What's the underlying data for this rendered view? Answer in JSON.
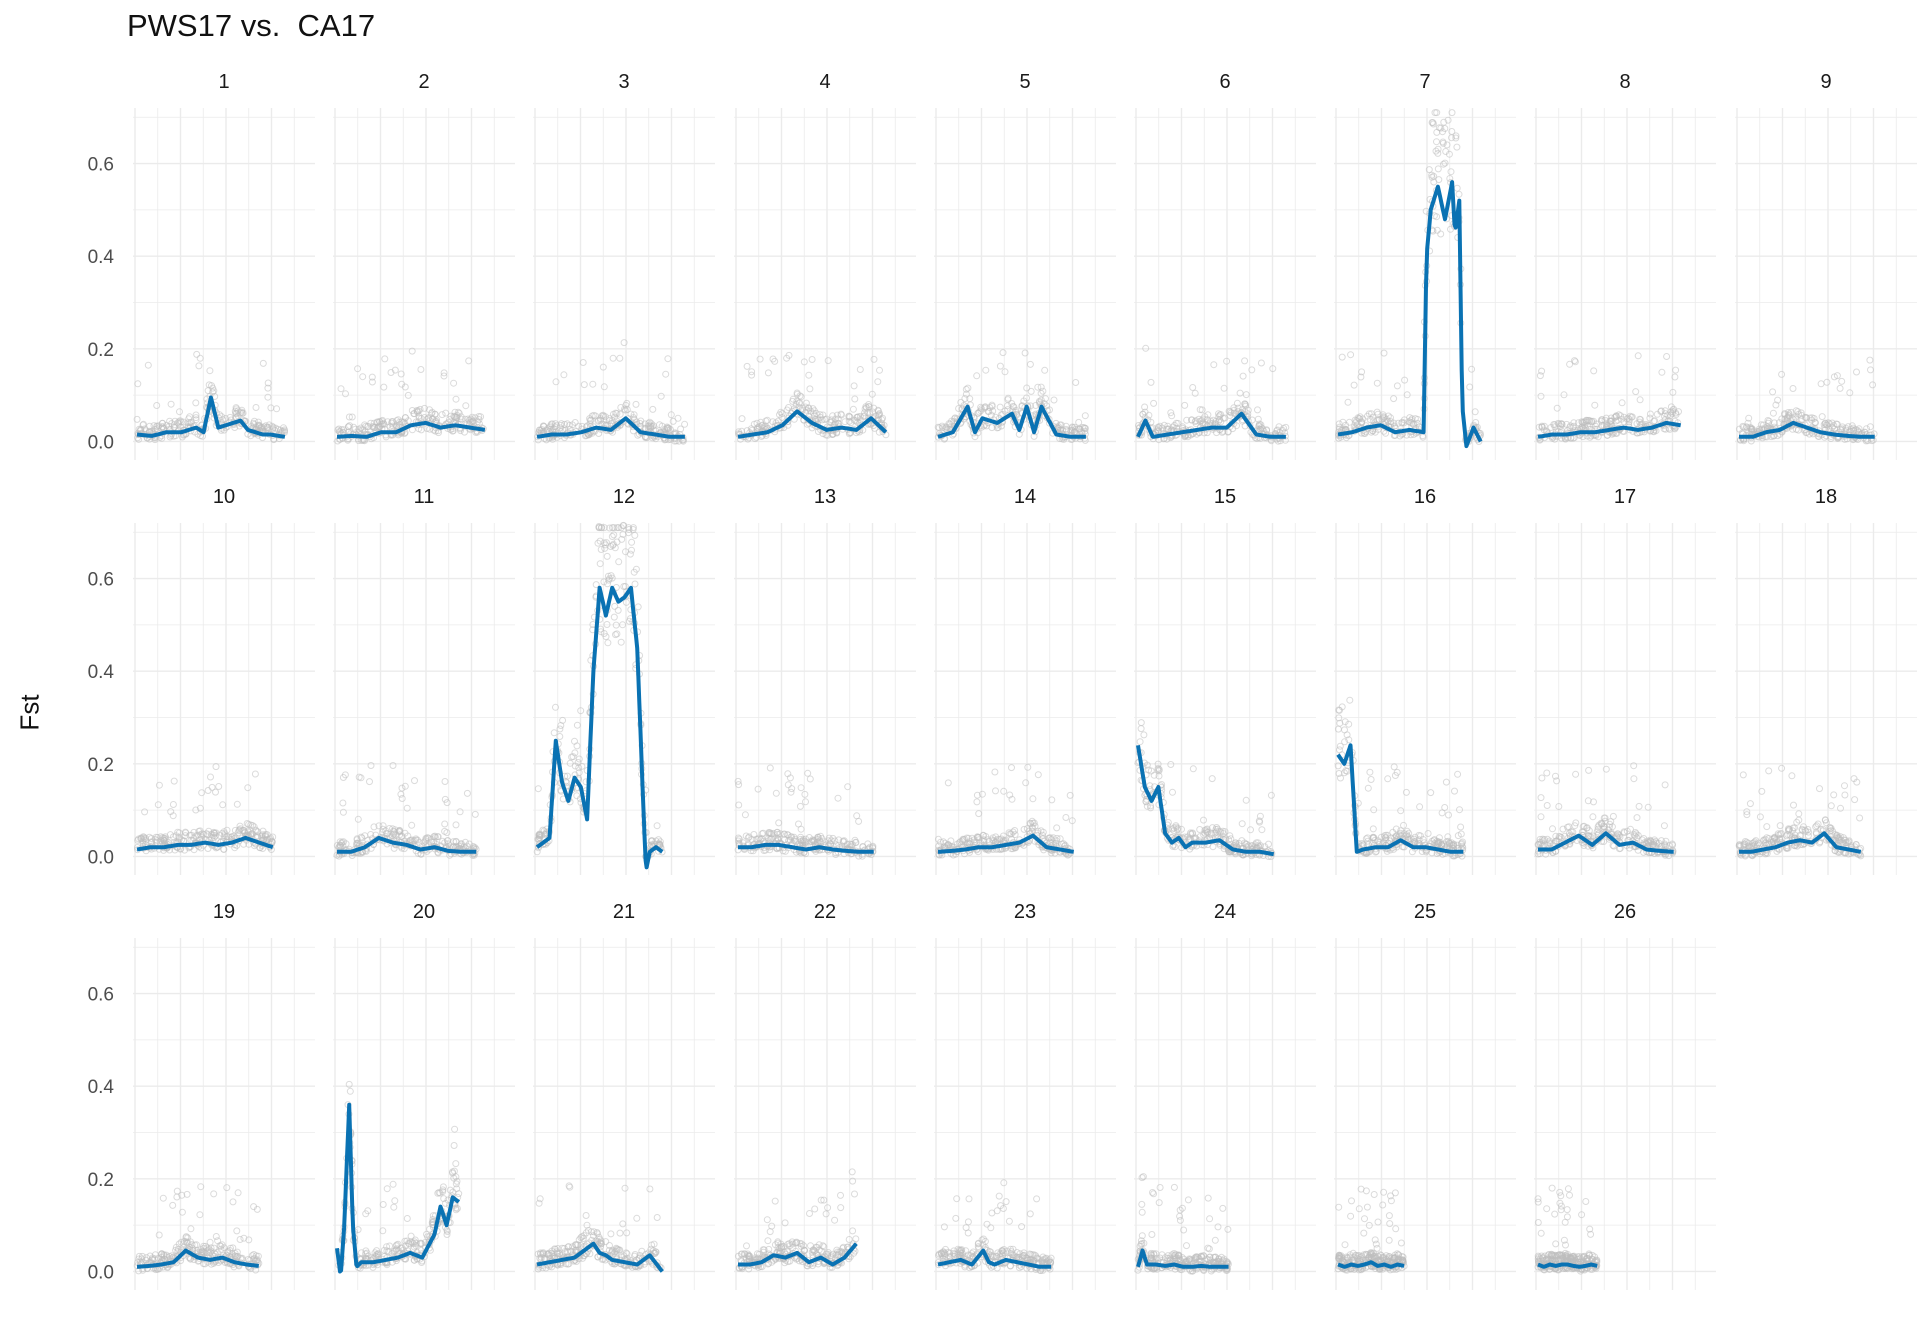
{
  "chart_data": {
    "type": "scatter",
    "title": "PWS17 vs.  CA17",
    "subtitle": "",
    "xlabel": "",
    "ylabel": "Fst",
    "ylim": [
      -0.04,
      0.72
    ],
    "y_ticks": [
      "0.0",
      "0.2",
      "0.4",
      "0.6"
    ],
    "y_tick_values": [
      0,
      0.2,
      0.4,
      0.6
    ],
    "x_tick_labels_shown": false,
    "grid": true,
    "legend": "none",
    "colors": {
      "points": "#bdbdbd",
      "smooth_line": "#0a72b3",
      "grid": "#ebebeb"
    },
    "facets": [
      {
        "label": "1",
        "x": [
          0,
          0.1,
          0.2,
          0.3,
          0.4,
          0.45,
          0.5,
          0.55,
          0.6,
          0.65,
          0.7,
          0.75,
          0.8,
          0.85,
          0.9,
          1
        ],
        "y": [
          0.015,
          0.012,
          0.02,
          0.02,
          0.03,
          0.02,
          0.095,
          0.03,
          0.035,
          0.04,
          0.045,
          0.025,
          0.02,
          0.015,
          0.015,
          0.01
        ]
      },
      {
        "label": "2",
        "x": [
          0,
          0.1,
          0.2,
          0.3,
          0.4,
          0.5,
          0.6,
          0.7,
          0.8,
          0.9,
          1
        ],
        "y": [
          0.01,
          0.012,
          0.01,
          0.02,
          0.02,
          0.035,
          0.04,
          0.03,
          0.035,
          0.03,
          0.025
        ]
      },
      {
        "label": "3",
        "x": [
          0,
          0.1,
          0.2,
          0.3,
          0.4,
          0.5,
          0.6,
          0.7,
          0.8,
          0.9,
          1
        ],
        "y": [
          0.01,
          0.015,
          0.015,
          0.02,
          0.03,
          0.025,
          0.05,
          0.02,
          0.015,
          0.01,
          0.01
        ]
      },
      {
        "label": "4",
        "x": [
          0,
          0.1,
          0.2,
          0.3,
          0.4,
          0.5,
          0.6,
          0.7,
          0.8,
          0.9,
          1
        ],
        "y": [
          0.01,
          0.015,
          0.02,
          0.035,
          0.065,
          0.04,
          0.025,
          0.03,
          0.025,
          0.05,
          0.02
        ]
      },
      {
        "label": "5",
        "x": [
          0,
          0.1,
          0.2,
          0.25,
          0.3,
          0.4,
          0.5,
          0.55,
          0.6,
          0.65,
          0.7,
          0.8,
          0.9,
          1
        ],
        "y": [
          0.01,
          0.02,
          0.075,
          0.02,
          0.05,
          0.04,
          0.06,
          0.025,
          0.075,
          0.02,
          0.075,
          0.015,
          0.01,
          0.01
        ]
      },
      {
        "label": "6",
        "x": [
          0,
          0.05,
          0.1,
          0.2,
          0.3,
          0.4,
          0.5,
          0.6,
          0.7,
          0.8,
          0.9,
          1
        ],
        "y": [
          0.01,
          0.045,
          0.01,
          0.015,
          0.02,
          0.025,
          0.03,
          0.03,
          0.06,
          0.015,
          0.01,
          0.01
        ]
      },
      {
        "label": "7",
        "x": [
          0,
          0.1,
          0.2,
          0.3,
          0.4,
          0.5,
          0.6,
          0.62,
          0.65,
          0.7,
          0.75,
          0.8,
          0.82,
          0.85,
          0.87,
          0.9,
          0.95,
          1
        ],
        "y": [
          0.015,
          0.02,
          0.03,
          0.035,
          0.02,
          0.025,
          0.02,
          0.4,
          0.5,
          0.55,
          0.48,
          0.56,
          0.45,
          0.52,
          0.08,
          -0.01,
          0.03,
          0.0
        ]
      },
      {
        "label": "8",
        "x": [
          0,
          0.1,
          0.2,
          0.3,
          0.4,
          0.5,
          0.6,
          0.7,
          0.8,
          0.9,
          1
        ],
        "y": [
          0.01,
          0.015,
          0.015,
          0.02,
          0.02,
          0.025,
          0.03,
          0.025,
          0.03,
          0.04,
          0.035
        ]
      },
      {
        "label": "9",
        "x": [
          0,
          0.1,
          0.2,
          0.3,
          0.4,
          0.5,
          0.6,
          0.7,
          0.8,
          0.9,
          1
        ],
        "y": [
          0.01,
          0.01,
          0.02,
          0.025,
          0.04,
          0.03,
          0.02,
          0.015,
          0.012,
          0.01,
          0.01
        ]
      },
      {
        "label": "10",
        "x": [
          0,
          0.1,
          0.2,
          0.3,
          0.4,
          0.5,
          0.6,
          0.7,
          0.8,
          0.9,
          1
        ],
        "y": [
          0.015,
          0.02,
          0.02,
          0.025,
          0.025,
          0.03,
          0.025,
          0.03,
          0.04,
          0.03,
          0.02
        ]
      },
      {
        "label": "11",
        "x": [
          0,
          0.1,
          0.2,
          0.3,
          0.4,
          0.5,
          0.6,
          0.7,
          0.8,
          0.9,
          1
        ],
        "y": [
          0.01,
          0.01,
          0.02,
          0.04,
          0.03,
          0.025,
          0.015,
          0.02,
          0.012,
          0.01,
          0.01
        ]
      },
      {
        "label": "12",
        "x": [
          0,
          0.1,
          0.15,
          0.2,
          0.25,
          0.3,
          0.35,
          0.4,
          0.45,
          0.5,
          0.55,
          0.6,
          0.65,
          0.7,
          0.75,
          0.8,
          0.85,
          0.87,
          0.9,
          0.95,
          1
        ],
        "y": [
          0.02,
          0.04,
          0.25,
          0.16,
          0.12,
          0.17,
          0.15,
          0.08,
          0.4,
          0.58,
          0.52,
          0.58,
          0.55,
          0.56,
          0.58,
          0.45,
          0.1,
          -0.03,
          0.01,
          0.02,
          0.01
        ]
      },
      {
        "label": "13",
        "x": [
          0,
          0.1,
          0.2,
          0.3,
          0.4,
          0.5,
          0.6,
          0.7,
          0.8,
          0.9,
          1
        ],
        "y": [
          0.02,
          0.02,
          0.025,
          0.025,
          0.02,
          0.015,
          0.02,
          0.015,
          0.012,
          0.01,
          0.01
        ]
      },
      {
        "label": "14",
        "x": [
          0,
          0.1,
          0.2,
          0.3,
          0.4,
          0.5,
          0.6,
          0.7,
          0.8,
          0.9,
          1
        ],
        "y": [
          0.01,
          0.012,
          0.015,
          0.02,
          0.02,
          0.025,
          0.03,
          0.045,
          0.02,
          0.015,
          0.01
        ]
      },
      {
        "label": "15",
        "x": [
          0,
          0.05,
          0.1,
          0.15,
          0.2,
          0.25,
          0.3,
          0.35,
          0.4,
          0.5,
          0.6,
          0.7,
          0.8,
          0.9,
          1
        ],
        "y": [
          0.24,
          0.15,
          0.12,
          0.15,
          0.05,
          0.03,
          0.04,
          0.02,
          0.03,
          0.03,
          0.035,
          0.015,
          0.01,
          0.01,
          0.005
        ]
      },
      {
        "label": "16",
        "x": [
          0,
          0.05,
          0.1,
          0.15,
          0.2,
          0.3,
          0.4,
          0.5,
          0.6,
          0.7,
          0.8,
          0.9,
          1
        ],
        "y": [
          0.22,
          0.2,
          0.24,
          0.01,
          0.015,
          0.02,
          0.02,
          0.035,
          0.02,
          0.02,
          0.015,
          0.01,
          0.01
        ]
      },
      {
        "label": "17",
        "x": [
          0,
          0.1,
          0.2,
          0.3,
          0.4,
          0.5,
          0.6,
          0.7,
          0.8,
          0.9,
          1
        ],
        "y": [
          0.015,
          0.015,
          0.03,
          0.045,
          0.025,
          0.05,
          0.025,
          0.03,
          0.015,
          0.012,
          0.01
        ]
      },
      {
        "label": "18",
        "x": [
          0,
          0.1,
          0.2,
          0.3,
          0.4,
          0.5,
          0.6,
          0.7,
          0.8,
          0.9,
          1
        ],
        "y": [
          0.01,
          0.01,
          0.015,
          0.02,
          0.03,
          0.035,
          0.03,
          0.05,
          0.02,
          0.015,
          0.01
        ]
      },
      {
        "label": "19",
        "x": [
          0,
          0.1,
          0.2,
          0.3,
          0.4,
          0.5,
          0.6,
          0.7,
          0.8,
          0.9,
          1
        ],
        "y": [
          0.01,
          0.012,
          0.015,
          0.02,
          0.045,
          0.03,
          0.025,
          0.03,
          0.02,
          0.015,
          0.012
        ]
      },
      {
        "label": "20",
        "x": [
          0,
          0.03,
          0.06,
          0.1,
          0.13,
          0.16,
          0.2,
          0.3,
          0.4,
          0.5,
          0.6,
          0.7,
          0.8,
          0.85,
          0.9,
          0.95,
          1
        ],
        "y": [
          0.05,
          -0.01,
          0.1,
          0.36,
          0.1,
          0.01,
          0.02,
          0.02,
          0.025,
          0.03,
          0.04,
          0.03,
          0.08,
          0.14,
          0.1,
          0.16,
          0.15
        ]
      },
      {
        "label": "21",
        "x": [
          0,
          0.1,
          0.2,
          0.3,
          0.4,
          0.45,
          0.5,
          0.55,
          0.6,
          0.7,
          0.8,
          0.9,
          1
        ],
        "y": [
          0.015,
          0.02,
          0.025,
          0.03,
          0.05,
          0.06,
          0.04,
          0.035,
          0.025,
          0.02,
          0.015,
          0.035,
          0.0
        ]
      },
      {
        "label": "22",
        "x": [
          0,
          0.1,
          0.2,
          0.3,
          0.4,
          0.5,
          0.6,
          0.7,
          0.8,
          0.9,
          1
        ],
        "y": [
          0.015,
          0.015,
          0.02,
          0.035,
          0.03,
          0.04,
          0.02,
          0.03,
          0.015,
          0.03,
          0.06
        ]
      },
      {
        "label": "23",
        "x": [
          0,
          0.1,
          0.2,
          0.3,
          0.4,
          0.45,
          0.5,
          0.6,
          0.7,
          0.8,
          0.9,
          1
        ],
        "y": [
          0.015,
          0.02,
          0.025,
          0.015,
          0.045,
          0.02,
          0.015,
          0.025,
          0.02,
          0.015,
          0.01,
          0.01
        ]
      },
      {
        "label": "24",
        "x": [
          0,
          0.05,
          0.1,
          0.2,
          0.3,
          0.4,
          0.5,
          0.6,
          0.7,
          0.8,
          0.9,
          1
        ],
        "y": [
          0.01,
          0.045,
          0.015,
          0.015,
          0.012,
          0.015,
          0.01,
          0.01,
          0.012,
          0.01,
          0.01,
          0.01
        ]
      },
      {
        "label": "25",
        "x": [
          0,
          0.1,
          0.2,
          0.3,
          0.4,
          0.5,
          0.6,
          0.7,
          0.8,
          0.9,
          1
        ],
        "y": [
          0.015,
          0.01,
          0.015,
          0.012,
          0.015,
          0.02,
          0.012,
          0.015,
          0.01,
          0.015,
          0.012
        ]
      },
      {
        "label": "26",
        "x": [
          0,
          0.1,
          0.2,
          0.3,
          0.4,
          0.5,
          0.6,
          0.7,
          0.8,
          0.9,
          1
        ],
        "y": [
          0.015,
          0.01,
          0.015,
          0.012,
          0.015,
          0.015,
          0.012,
          0.01,
          0.012,
          0.015,
          0.012
        ]
      }
    ]
  }
}
